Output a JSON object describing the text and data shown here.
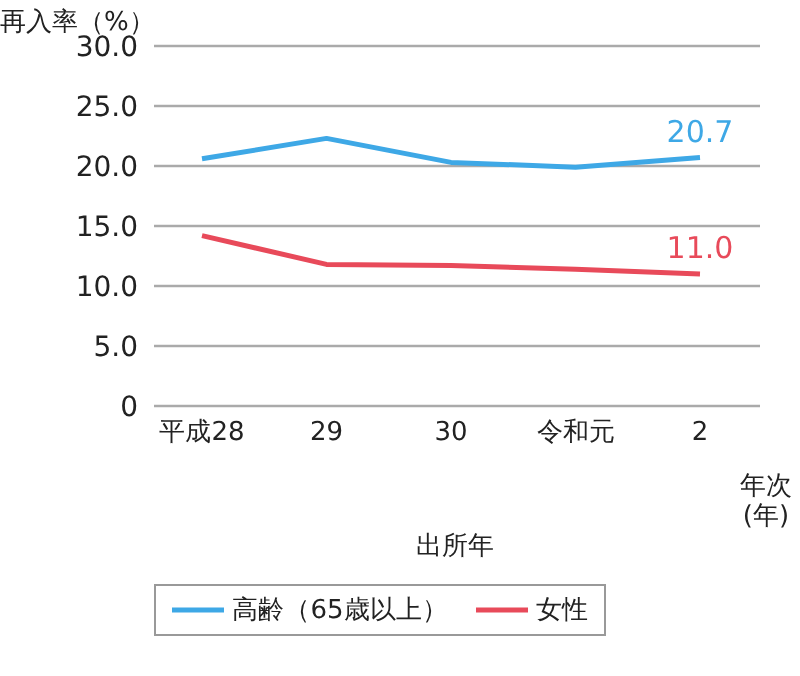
{
  "chart_data": {
    "type": "line",
    "ylabel": "再入率（%）",
    "xlabel": "出所年",
    "categories": [
      "平成28",
      "29",
      "30",
      "令和元",
      "2"
    ],
    "series": [
      {
        "name": "高齢（65歳以上）",
        "color": "#3ea8e6",
        "values": [
          20.6,
          22.3,
          20.3,
          19.9,
          20.7
        ],
        "value_labels": [
          null,
          null,
          null,
          null,
          "20.7"
        ]
      },
      {
        "name": "女性",
        "color": "#e84a5a",
        "values": [
          14.2,
          11.8,
          11.7,
          11.4,
          11.0
        ],
        "value_labels": [
          null,
          null,
          null,
          null,
          "11.0"
        ]
      }
    ],
    "ylim": [
      0,
      30
    ],
    "yticks": [
      0,
      {
        "value": 5,
        "label": "5.0"
      },
      {
        "value": 10,
        "label": "10.0"
      },
      {
        "value": 15,
        "label": "15.0"
      },
      {
        "value": 20,
        "label": "20.0"
      },
      {
        "value": 25,
        "label": "25.0"
      },
      {
        "value": 30,
        "label": "30.0"
      }
    ],
    "grid": "y",
    "legend": "bottom",
    "marker": "none",
    "line_style": "solid",
    "annotations": [
      "年次\n(年)"
    ]
  }
}
